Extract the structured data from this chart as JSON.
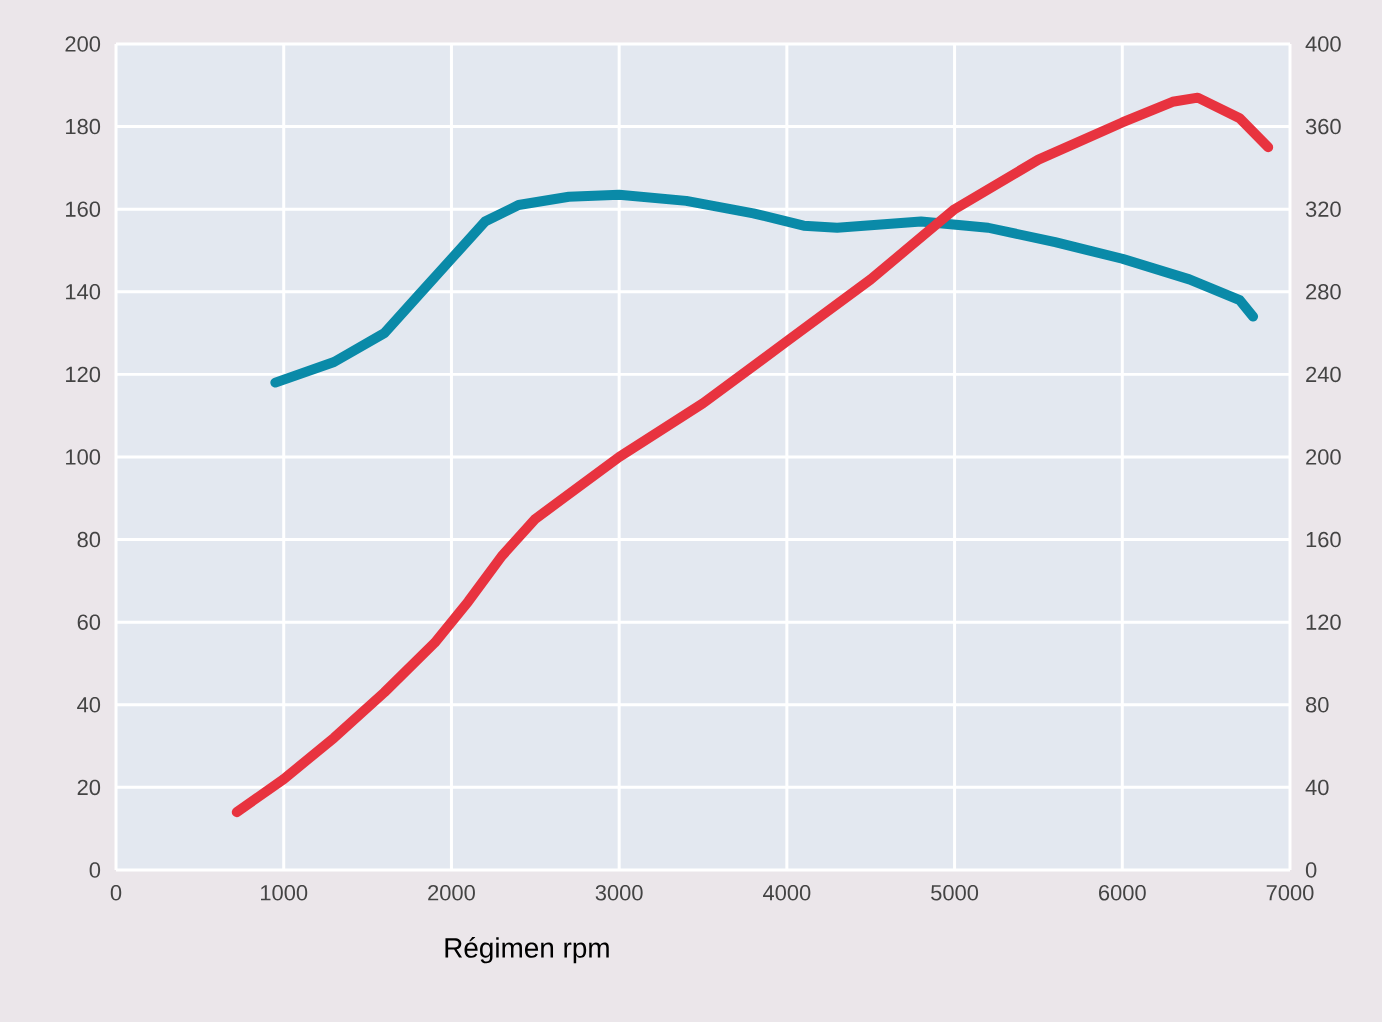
{
  "chart_data": {
    "type": "line",
    "xlabel": "Régimen rpm",
    "xlim": [
      0,
      7000
    ],
    "xticks": [
      0,
      1000,
      2000,
      3000,
      4000,
      5000,
      6000,
      7000
    ],
    "ylim": [
      0,
      200
    ],
    "yticks": [
      0,
      20,
      40,
      60,
      80,
      100,
      120,
      140,
      160,
      180,
      200
    ],
    "y2lim": [
      0,
      400
    ],
    "y2ticks": [
      0,
      40,
      80,
      120,
      160,
      200,
      240,
      280,
      320,
      360,
      400
    ],
    "grid": true,
    "series": [
      {
        "color": "#0a8aa8",
        "x": [
          950,
          1300,
          1600,
          1800,
          2000,
          2200,
          2400,
          2700,
          3000,
          3400,
          3800,
          4100,
          4300,
          4800,
          5200,
          5600,
          6000,
          6400,
          6700,
          6780
        ],
        "values": [
          118,
          123,
          130,
          139,
          148,
          157,
          161,
          163,
          163.5,
          162,
          159,
          156,
          155.5,
          157,
          155.5,
          152,
          148,
          143,
          138,
          134
        ]
      },
      {
        "color": "#e8333f",
        "x": [
          720,
          1000,
          1300,
          1600,
          1900,
          2100,
          2300,
          2500,
          2800,
          3000,
          3500,
          4000,
          4500,
          5000,
          5500,
          6000,
          6300,
          6450,
          6700,
          6870
        ],
        "values": [
          14,
          22,
          32,
          43,
          55,
          65,
          76,
          85,
          94,
          100,
          113,
          128,
          143,
          160,
          172,
          181,
          186,
          187,
          182,
          175
        ]
      }
    ]
  }
}
